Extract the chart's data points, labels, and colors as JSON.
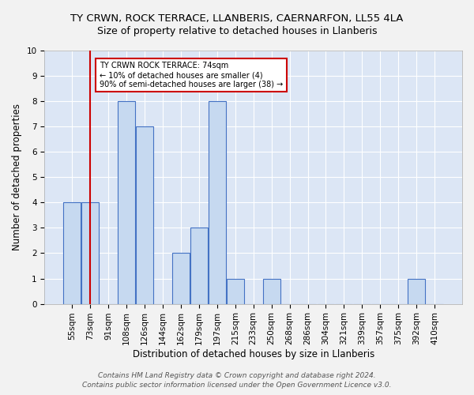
{
  "title": "TY CRWN, ROCK TERRACE, LLANBERIS, CAERNARFON, LL55 4LA",
  "subtitle": "Size of property relative to detached houses in Llanberis",
  "xlabel": "Distribution of detached houses by size in Llanberis",
  "ylabel": "Number of detached properties",
  "bins": [
    "55sqm",
    "73sqm",
    "91sqm",
    "108sqm",
    "126sqm",
    "144sqm",
    "162sqm",
    "179sqm",
    "197sqm",
    "215sqm",
    "233sqm",
    "250sqm",
    "268sqm",
    "286sqm",
    "304sqm",
    "321sqm",
    "339sqm",
    "357sqm",
    "375sqm",
    "392sqm",
    "410sqm"
  ],
  "values": [
    4,
    4,
    0,
    8,
    7,
    0,
    2,
    3,
    8,
    1,
    0,
    1,
    0,
    0,
    0,
    0,
    0,
    0,
    0,
    1,
    0
  ],
  "bar_color": "#c6d9f0",
  "bar_edge_color": "#4472c4",
  "red_line_x": 1,
  "annotation_title": "TY CRWN ROCK TERRACE: 74sqm",
  "annotation_line1": "← 10% of detached houses are smaller (4)",
  "annotation_line2": "90% of semi-detached houses are larger (38) →",
  "annotation_box_color": "#ffffff",
  "annotation_box_edge": "#cc0000",
  "red_line_color": "#cc0000",
  "ylim": [
    0,
    10
  ],
  "yticks": [
    0,
    1,
    2,
    3,
    4,
    5,
    6,
    7,
    8,
    9,
    10
  ],
  "footer1": "Contains HM Land Registry data © Crown copyright and database right 2024.",
  "footer2": "Contains public sector information licensed under the Open Government Licence v3.0.",
  "background_color": "#dce6f5",
  "grid_color": "#ffffff",
  "title_fontsize": 9.5,
  "subtitle_fontsize": 9,
  "axis_label_fontsize": 8.5,
  "tick_fontsize": 7.5,
  "footer_fontsize": 6.5
}
